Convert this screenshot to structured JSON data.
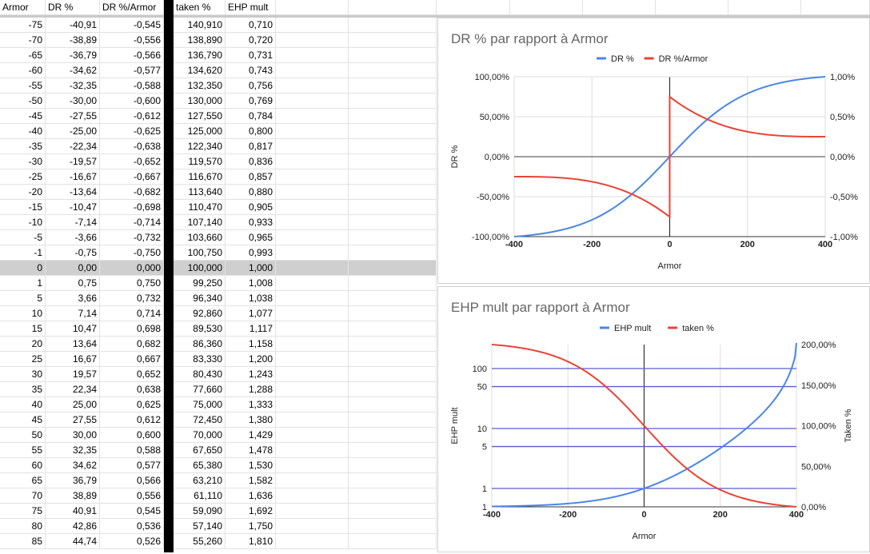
{
  "sheet": {
    "headers": [
      "Armor",
      "DR %",
      "DR %/Armor",
      "taken %",
      "EHP mult"
    ],
    "rows": [
      [
        "-75",
        "-40,91",
        "-0,545",
        "140,910",
        "0,710"
      ],
      [
        "-70",
        "-38,89",
        "-0,556",
        "138,890",
        "0,720"
      ],
      [
        "-65",
        "-36,79",
        "-0,566",
        "136,790",
        "0,731"
      ],
      [
        "-60",
        "-34,62",
        "-0,577",
        "134,620",
        "0,743"
      ],
      [
        "-55",
        "-32,35",
        "-0,588",
        "132,350",
        "0,756"
      ],
      [
        "-50",
        "-30,00",
        "-0,600",
        "130,000",
        "0,769"
      ],
      [
        "-45",
        "-27,55",
        "-0,612",
        "127,550",
        "0,784"
      ],
      [
        "-40",
        "-25,00",
        "-0,625",
        "125,000",
        "0,800"
      ],
      [
        "-35",
        "-22,34",
        "-0,638",
        "122,340",
        "0,817"
      ],
      [
        "-30",
        "-19,57",
        "-0,652",
        "119,570",
        "0,836"
      ],
      [
        "-25",
        "-16,67",
        "-0,667",
        "116,670",
        "0,857"
      ],
      [
        "-20",
        "-13,64",
        "-0,682",
        "113,640",
        "0,880"
      ],
      [
        "-15",
        "-10,47",
        "-0,698",
        "110,470",
        "0,905"
      ],
      [
        "-10",
        "-7,14",
        "-0,714",
        "107,140",
        "0,933"
      ],
      [
        "-5",
        "-3,66",
        "-0,732",
        "103,660",
        "0,965"
      ],
      [
        "-1",
        "-0,75",
        "-0,750",
        "100,750",
        "0,993"
      ],
      [
        "0",
        "0,00",
        "0,000",
        "100,000",
        "1,000"
      ],
      [
        "1",
        "0,75",
        "0,750",
        "99,250",
        "1,008"
      ],
      [
        "5",
        "3,66",
        "0,732",
        "96,340",
        "1,038"
      ],
      [
        "10",
        "7,14",
        "0,714",
        "92,860",
        "1,077"
      ],
      [
        "15",
        "10,47",
        "0,698",
        "89,530",
        "1,117"
      ],
      [
        "20",
        "13,64",
        "0,682",
        "86,360",
        "1,158"
      ],
      [
        "25",
        "16,67",
        "0,667",
        "83,330",
        "1,200"
      ],
      [
        "30",
        "19,57",
        "0,652",
        "80,430",
        "1,243"
      ],
      [
        "35",
        "22,34",
        "0,638",
        "77,660",
        "1,288"
      ],
      [
        "40",
        "25,00",
        "0,625",
        "75,000",
        "1,333"
      ],
      [
        "45",
        "27,55",
        "0,612",
        "72,450",
        "1,380"
      ],
      [
        "50",
        "30,00",
        "0,600",
        "70,000",
        "1,429"
      ],
      [
        "55",
        "32,35",
        "0,588",
        "67,650",
        "1,478"
      ],
      [
        "60",
        "34,62",
        "0,577",
        "65,380",
        "1,530"
      ],
      [
        "65",
        "36,79",
        "0,566",
        "63,210",
        "1,582"
      ],
      [
        "70",
        "38,89",
        "0,556",
        "61,110",
        "1,636"
      ],
      [
        "75",
        "40,91",
        "0,545",
        "59,090",
        "1,692"
      ],
      [
        "80",
        "42,86",
        "0,536",
        "57,140",
        "1,750"
      ],
      [
        "85",
        "44,74",
        "0,526",
        "55,260",
        "1,810"
      ]
    ],
    "selected_row_index": 16
  },
  "colors": {
    "blue": "#4a86e8",
    "red": "#ea4335",
    "hline": "#5b5bd6",
    "selected": "#cfcfcf"
  },
  "chart_data": [
    {
      "type": "line",
      "title": "DR % par rapport à Armor",
      "xlabel": "Armor",
      "ylabel": "DR %",
      "legend_position": "top",
      "x_ticks": [
        "-400",
        "-200",
        "0",
        "200",
        "400"
      ],
      "xlim": [
        -400,
        400
      ],
      "y_left_ticks": [
        "100,00%",
        "50,00%",
        "0,00%",
        "-50,00%",
        "-100,00%"
      ],
      "y_left_lim": [
        -100,
        100
      ],
      "y_right_ticks": [
        "1,00%",
        "0,50%",
        "0,00%",
        "-0,50%",
        "-1,00%"
      ],
      "y_right_lim": [
        -1,
        1
      ],
      "grid": true,
      "series": [
        {
          "name": "DR %",
          "axis": "left",
          "color": "#4a86e8",
          "x": [
            -400,
            -350,
            -300,
            -250,
            -200,
            -150,
            -100,
            -75,
            -50,
            -25,
            0,
            25,
            50,
            75,
            100,
            150,
            200,
            250,
            300,
            350,
            400
          ],
          "y": [
            -100,
            -93.3,
            -85.7,
            -76.9,
            -66.7,
            -54.5,
            -40.0,
            -40.91,
            -30.0,
            -16.67,
            0,
            16.67,
            30.0,
            40.91,
            50.0,
            60.0,
            66.7,
            71.4,
            75.0,
            77.8,
            100
          ]
        },
        {
          "name": "DR %/Armor",
          "axis": "right",
          "color": "#ea4335",
          "x": [
            -400,
            -350,
            -300,
            -250,
            -200,
            -150,
            -100,
            -75,
            -50,
            -25,
            -1,
            0,
            1,
            25,
            50,
            75,
            100,
            150,
            200,
            250,
            300,
            350,
            400
          ],
          "y": [
            -0.25,
            -0.267,
            -0.286,
            -0.308,
            -0.333,
            -0.364,
            -0.4,
            -0.545,
            -0.6,
            -0.667,
            -0.75,
            0,
            0.75,
            0.667,
            0.6,
            0.545,
            0.5,
            0.4,
            0.333,
            0.308,
            0.286,
            0.267,
            0.25
          ]
        }
      ]
    },
    {
      "type": "line",
      "title": "EHP mult par rapport à Armor",
      "xlabel": "Armor",
      "ylabel": "EHP mult",
      "y2label": "Taken %",
      "legend_position": "top",
      "x_ticks": [
        "-400",
        "-200",
        "0",
        "200",
        "400"
      ],
      "xlim": [
        -400,
        400
      ],
      "y_left_ticks": [
        "100",
        "50",
        "10",
        "5",
        "1",
        "1"
      ],
      "y_left_scale": "log",
      "y_right_ticks": [
        "200,00%",
        "150,00%",
        "100,00%",
        "50,00%",
        "0,00%"
      ],
      "y_right_lim": [
        0,
        200
      ],
      "grid": true,
      "series": [
        {
          "name": "EHP mult",
          "axis": "left",
          "color": "#4a86e8",
          "x": [
            -400,
            -300,
            -200,
            -100,
            0,
            100,
            200,
            300,
            350,
            380,
            400
          ],
          "y": [
            0.5,
            0.57,
            0.67,
            0.8,
            1,
            1.33,
            2,
            4,
            8,
            20,
            200
          ]
        },
        {
          "name": "taken %",
          "axis": "right",
          "color": "#ea4335",
          "x": [
            -400,
            -300,
            -200,
            -150,
            -100,
            -50,
            0,
            50,
            100,
            150,
            200,
            300,
            400
          ],
          "y": [
            200,
            185,
            166.7,
            154.5,
            140,
            130,
            100,
            70,
            60,
            45.5,
            33.3,
            15,
            0
          ]
        }
      ]
    }
  ]
}
